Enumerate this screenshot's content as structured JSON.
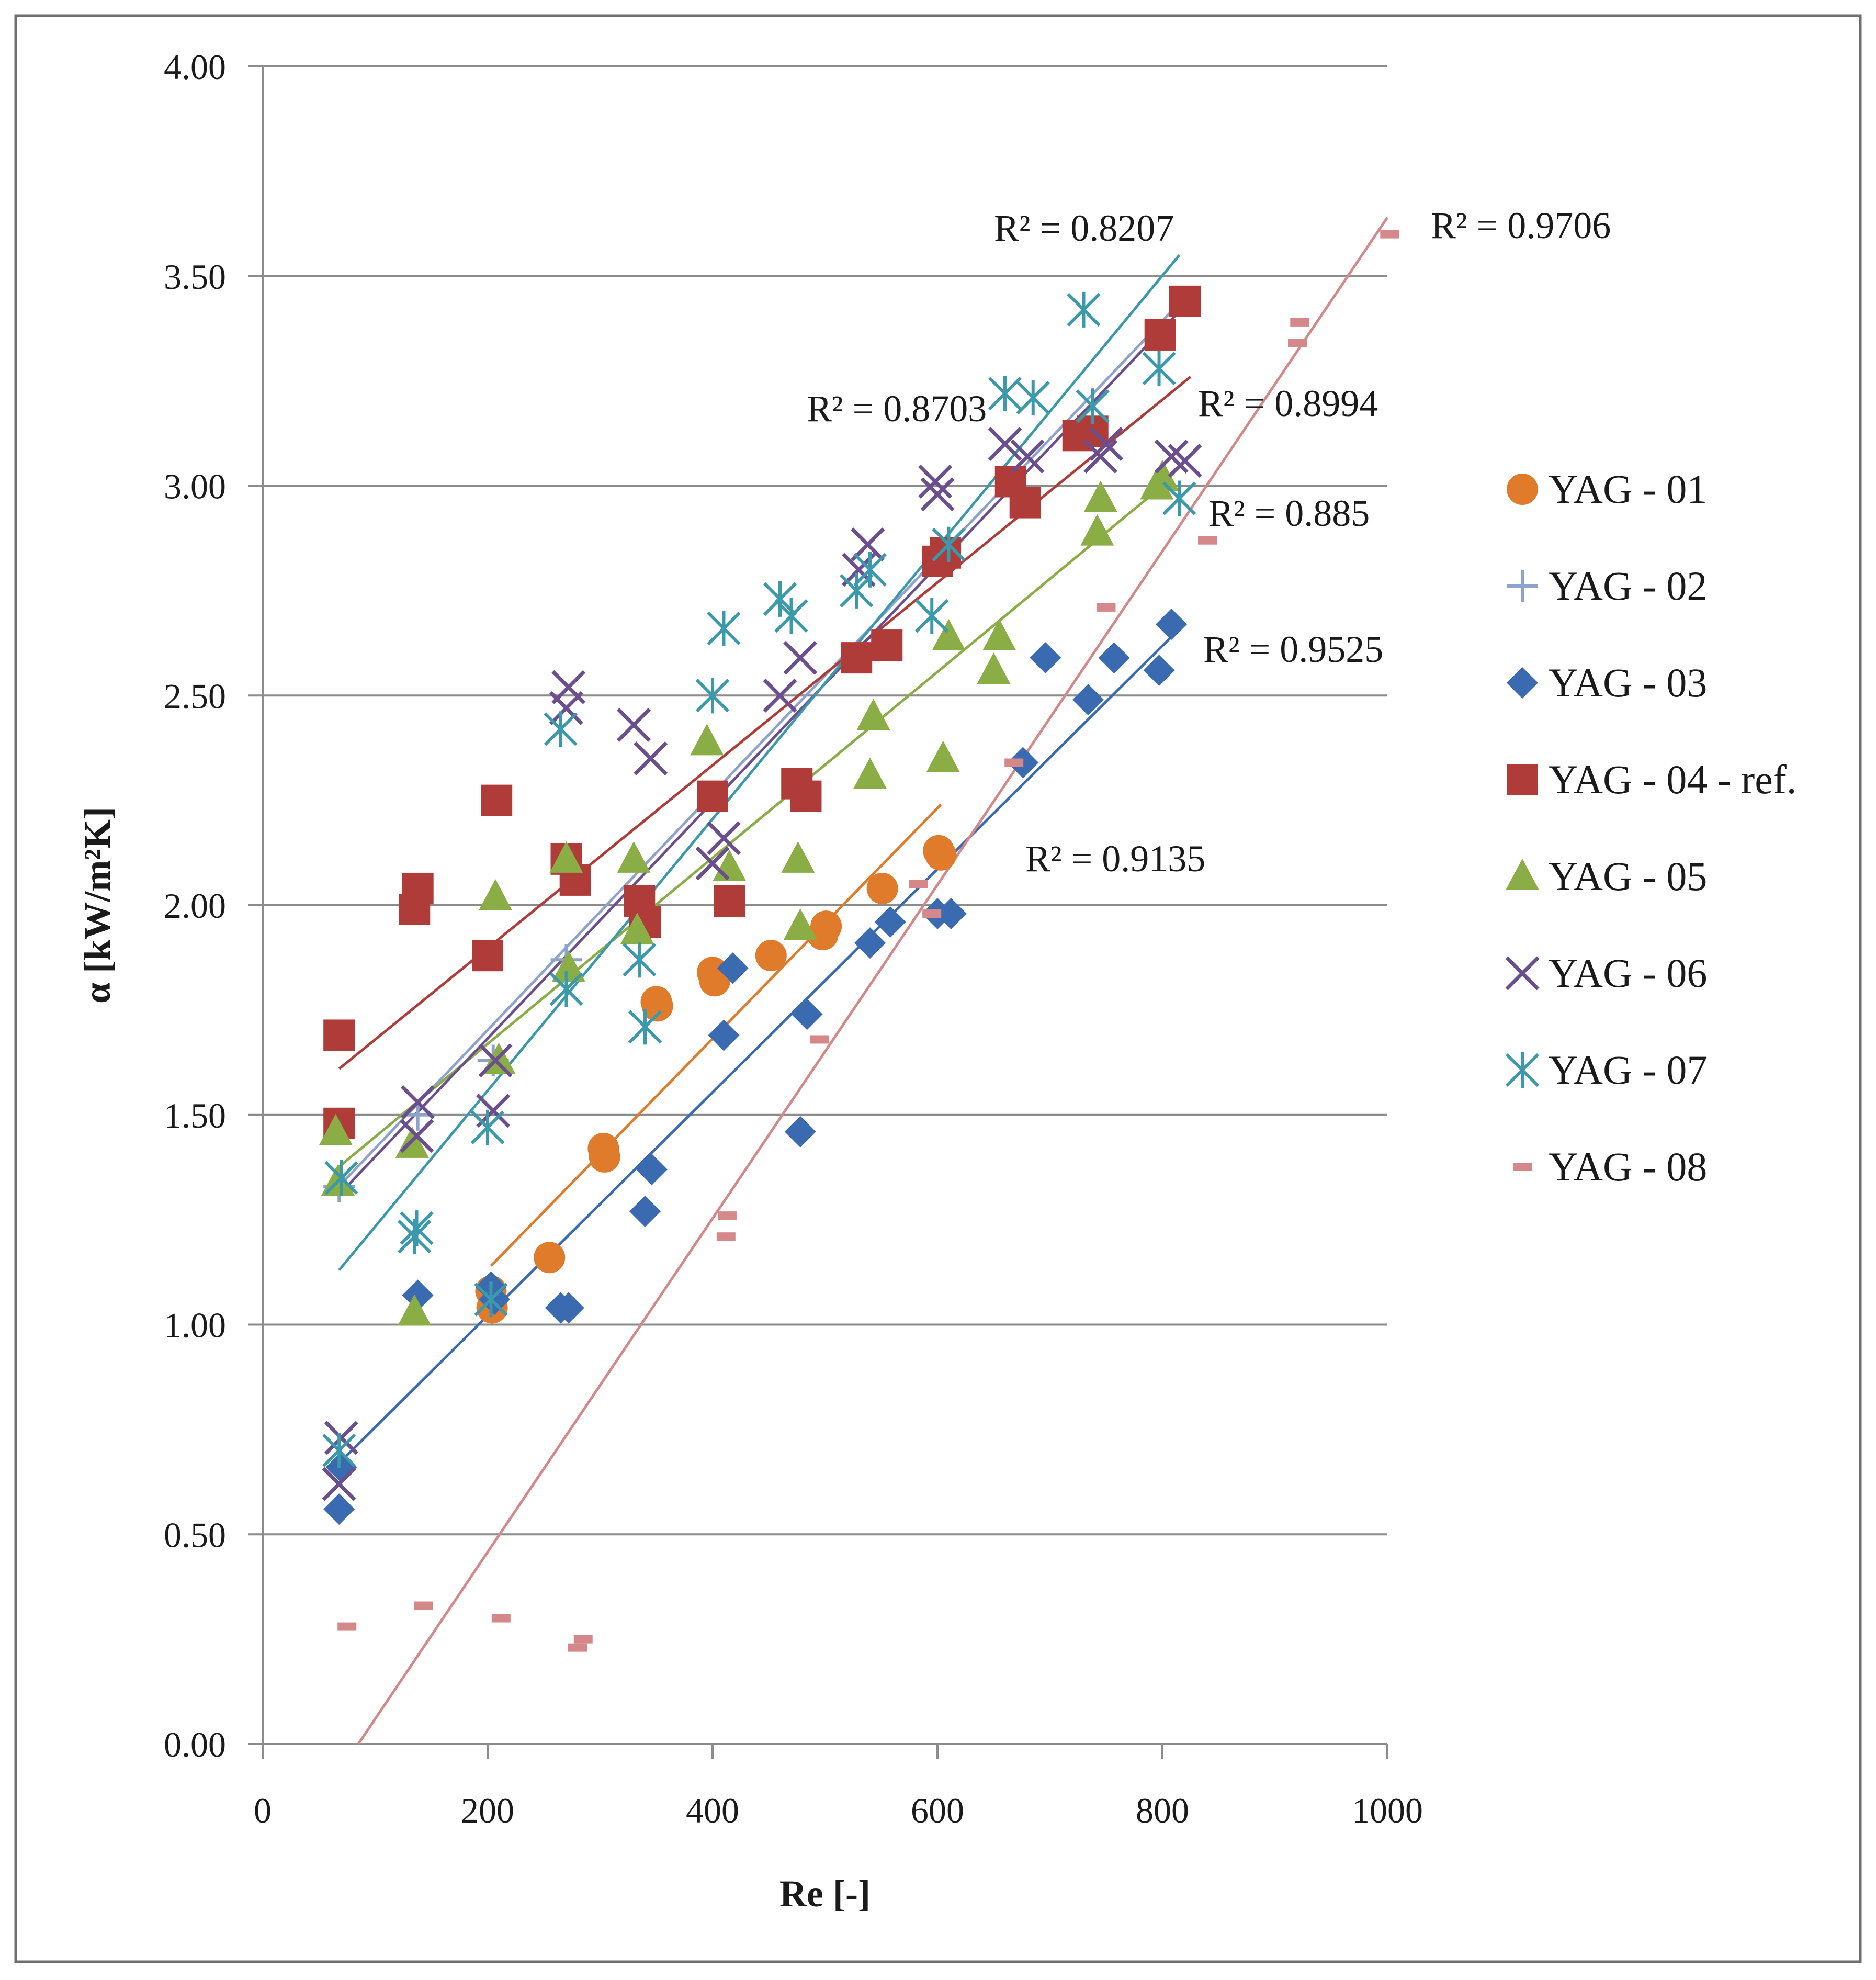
{
  "chart_data": {
    "type": "scatter",
    "xlabel": "Re [-]",
    "ylabel": "α  [kW/m²K]",
    "xlim": [
      0,
      1000
    ],
    "ylim": [
      0,
      4
    ],
    "x_ticks": [
      "0",
      "200",
      "400",
      "600",
      "800",
      "1000"
    ],
    "y_ticks": [
      "0.00",
      "0.50",
      "1.00",
      "1.50",
      "2.00",
      "2.50",
      "3.00",
      "3.50",
      "4.00"
    ],
    "grid": "horizontal",
    "legend_position": "right",
    "series": [
      {
        "name": "YAG - 01",
        "marker": "circle",
        "color": "#E07B2C",
        "x": [
          203,
          204,
          255,
          303,
          304,
          350,
          351,
          400,
          402,
          452,
          498,
          501,
          551,
          601,
          603
        ],
        "y": [
          1.08,
          1.04,
          1.16,
          1.42,
          1.4,
          1.77,
          1.76,
          1.84,
          1.82,
          1.88,
          1.93,
          1.95,
          2.04,
          2.13,
          2.12
        ],
        "trend": {
          "x": [
            203,
            603
          ],
          "y": [
            1.14,
            2.24
          ]
        },
        "r2": "R² = 0.9135"
      },
      {
        "name": "YAG - 02",
        "marker": "plus",
        "color": "#8DA3CC",
        "x": [
          68,
          138,
          205,
          270
        ],
        "y": [
          1.33,
          1.5,
          1.63,
          1.87
        ],
        "trend": {
          "x": [
            68,
            820
          ],
          "y": [
            1.33,
            3.45
          ]
        },
        "r2": ""
      },
      {
        "name": "YAG - 03",
        "marker": "diamond",
        "color": "#3A6BB0",
        "x": [
          68,
          70,
          138,
          203,
          206,
          265,
          272,
          340,
          346,
          410,
          418,
          478,
          484,
          540,
          558,
          600,
          612,
          676,
          696,
          734,
          757,
          797,
          808
        ],
        "y": [
          0.56,
          0.66,
          1.07,
          1.09,
          1.06,
          1.04,
          1.04,
          1.27,
          1.37,
          1.69,
          1.85,
          1.46,
          1.74,
          1.91,
          1.96,
          1.98,
          1.98,
          2.34,
          2.59,
          2.49,
          2.59,
          2.56,
          2.67
        ],
        "trend": {
          "x": [
            68,
            808
          ],
          "y": [
            0.67,
            2.64
          ]
        },
        "r2": "R² = 0.9525"
      },
      {
        "name": "YAG - 04 - ref.",
        "marker": "square",
        "color": "#B03C3A",
        "x": [
          68,
          68,
          135,
          138,
          200,
          208,
          270,
          278,
          335,
          340,
          400,
          415,
          475,
          483,
          528,
          555,
          600,
          607,
          665,
          678,
          725,
          738,
          798,
          820
        ],
        "y": [
          1.69,
          1.48,
          1.99,
          2.04,
          1.88,
          2.25,
          2.11,
          2.06,
          2.01,
          1.96,
          2.26,
          2.01,
          2.29,
          2.26,
          2.59,
          2.62,
          2.82,
          2.84,
          3.01,
          2.96,
          3.12,
          3.13,
          3.36,
          3.44
        ],
        "trend": {
          "x": [
            68,
            825
          ],
          "y": [
            1.61,
            3.26
          ]
        },
        "r2": "R² = 0.8994"
      },
      {
        "name": "YAG - 05",
        "marker": "triangle",
        "color": "#8AAE45",
        "x": [
          65,
          67,
          133,
          135,
          207,
          210,
          270,
          272,
          330,
          333,
          395,
          415,
          476,
          478,
          540,
          543,
          605,
          610,
          650,
          655,
          742,
          745,
          795,
          800
        ],
        "y": [
          1.46,
          1.34,
          1.43,
          1.03,
          2.02,
          1.63,
          2.11,
          1.85,
          2.11,
          1.94,
          2.39,
          2.09,
          2.11,
          1.95,
          2.31,
          2.45,
          2.35,
          2.64,
          2.56,
          2.64,
          2.89,
          2.97,
          3.0,
          3.02
        ],
        "trend": {
          "x": [
            65,
            800
          ],
          "y": [
            1.37,
            3.0
          ]
        },
        "r2": "R² = 0.885"
      },
      {
        "name": "YAG - 06",
        "marker": "x",
        "color": "#6B4E8E",
        "x": [
          68,
          70,
          137,
          138,
          205,
          207,
          270,
          272,
          330,
          345,
          400,
          410,
          460,
          478,
          530,
          538,
          598,
          600,
          660,
          680,
          745,
          750,
          808,
          820
        ],
        "y": [
          0.62,
          0.73,
          1.45,
          1.53,
          1.51,
          1.63,
          2.47,
          2.52,
          2.43,
          2.35,
          2.1,
          2.16,
          2.5,
          2.59,
          2.8,
          2.86,
          3.01,
          2.98,
          3.1,
          3.07,
          3.07,
          3.1,
          3.07,
          3.06
        ],
        "trend": {
          "x": [
            68,
            820
          ],
          "y": [
            1.31,
            3.43
          ]
        },
        "r2": ""
      },
      {
        "name": "YAG - 07",
        "marker": "asterisk",
        "color": "#3A9AAB",
        "x": [
          68,
          70,
          135,
          137,
          200,
          203,
          265,
          270,
          335,
          340,
          400,
          410,
          460,
          470,
          528,
          540,
          595,
          610,
          660,
          685,
          730,
          738,
          797,
          815
        ],
        "y": [
          0.7,
          1.35,
          1.21,
          1.23,
          1.47,
          1.06,
          2.42,
          1.8,
          1.87,
          1.71,
          2.5,
          2.66,
          2.73,
          2.69,
          2.75,
          2.8,
          2.69,
          2.86,
          3.22,
          3.21,
          3.42,
          3.19,
          3.28,
          2.97
        ],
        "trend": {
          "x": [
            68,
            815
          ],
          "y": [
            1.13,
            3.55
          ]
        },
        "r2": "R² = 0.8207"
      },
      {
        "name": "YAG - 08",
        "marker": "dash",
        "color": "#D4888A",
        "x": [
          75,
          143,
          212,
          280,
          285,
          412,
          413,
          495,
          583,
          595,
          668,
          750,
          840,
          920,
          922,
          1002
        ],
        "y": [
          0.28,
          0.33,
          0.3,
          0.23,
          0.25,
          1.21,
          1.26,
          1.68,
          2.05,
          1.98,
          2.34,
          2.71,
          2.87,
          3.34,
          3.39,
          3.6
        ],
        "trend": {
          "x": [
            85,
            1000
          ],
          "y": [
            0.0,
            3.64
          ]
        },
        "r2": "R² = 0.9706"
      }
    ],
    "annotations": [
      {
        "text": "R² = 0.8703",
        "x": 485,
        "y": 3.15
      }
    ]
  }
}
